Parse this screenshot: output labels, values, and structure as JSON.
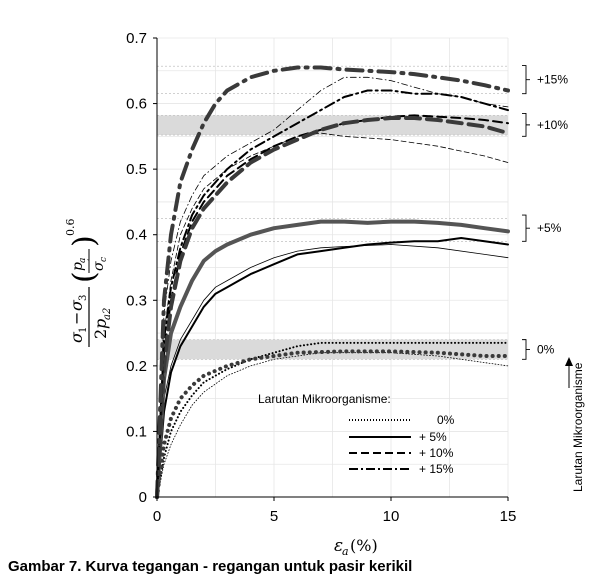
{
  "chart_data": {
    "type": "line",
    "xlabel": "εa (%)",
    "ylabel": "(σ1 − σ3)/(2pa2) (pa/σ'c)^0.6",
    "xlim": [
      0,
      15
    ],
    "ylim": [
      0,
      0.7
    ],
    "xticks": [
      "0",
      "5",
      "10",
      "15"
    ],
    "yticks": [
      "0",
      "0.1",
      "0.2",
      "0.3",
      "0.4",
      "0.5",
      "0.6",
      "0.7"
    ],
    "grid": true,
    "legend": {
      "title": "Larutan Mikroorganisme:",
      "placement": "bottom-center",
      "entries": [
        "0%",
        "+ 5%",
        "+ 10%",
        "+ 15%"
      ]
    },
    "group_labels": [
      "0%",
      "+5%",
      "+10%",
      "+15%"
    ],
    "arrow_label": "Larutan Mikroorganisme",
    "bands": [
      {
        "group": "0%",
        "y": [
          0.21,
          0.24
        ]
      },
      {
        "group": "+10%",
        "y": [
          0.552,
          0.582
        ]
      }
    ],
    "series": [
      {
        "group": "0%",
        "style": "dotted",
        "weight": "thin",
        "x": [
          0,
          0.3,
          0.6,
          1,
          1.5,
          2,
          3,
          4,
          5,
          6,
          7,
          8,
          10,
          12,
          14,
          15
        ],
        "y": [
          0,
          0.05,
          0.08,
          0.11,
          0.14,
          0.16,
          0.185,
          0.2,
          0.21,
          0.215,
          0.22,
          0.22,
          0.22,
          0.215,
          0.205,
          0.2
        ]
      },
      {
        "group": "0%",
        "style": "dotted",
        "weight": "medium",
        "x": [
          0,
          0.3,
          0.6,
          1,
          1.5,
          2,
          3,
          4,
          5,
          6,
          7,
          8,
          10,
          12,
          14,
          15
        ],
        "y": [
          0,
          0.06,
          0.1,
          0.13,
          0.155,
          0.175,
          0.195,
          0.21,
          0.22,
          0.23,
          0.235,
          0.235,
          0.235,
          0.235,
          0.235,
          0.235
        ]
      },
      {
        "group": "0%",
        "style": "dotted",
        "weight": "heavy",
        "x": [
          0,
          0.3,
          0.6,
          1,
          1.5,
          2,
          3,
          4,
          5,
          6,
          8,
          10,
          12,
          14,
          15
        ],
        "y": [
          0,
          0.08,
          0.12,
          0.15,
          0.17,
          0.185,
          0.2,
          0.21,
          0.215,
          0.22,
          0.222,
          0.222,
          0.22,
          0.215,
          0.215
        ]
      },
      {
        "group": "+5%",
        "style": "solid",
        "weight": "thin",
        "x": [
          0,
          0.3,
          0.6,
          1,
          1.5,
          2,
          2.5,
          3,
          4,
          5,
          6,
          7,
          8,
          10,
          12,
          14,
          15
        ],
        "y": [
          0,
          0.15,
          0.2,
          0.24,
          0.27,
          0.3,
          0.32,
          0.33,
          0.35,
          0.365,
          0.375,
          0.38,
          0.382,
          0.385,
          0.38,
          0.37,
          0.365
        ]
      },
      {
        "group": "+5%",
        "style": "solid",
        "weight": "medium",
        "x": [
          0,
          0.3,
          0.6,
          1,
          1.5,
          2,
          2.5,
          3,
          3.5,
          4,
          5,
          6,
          7,
          8,
          9,
          10,
          11,
          12,
          13,
          14,
          15
        ],
        "y": [
          0,
          0.13,
          0.19,
          0.23,
          0.26,
          0.29,
          0.31,
          0.32,
          0.33,
          0.34,
          0.355,
          0.37,
          0.375,
          0.38,
          0.385,
          0.388,
          0.39,
          0.39,
          0.395,
          0.39,
          0.385
        ]
      },
      {
        "group": "+5%",
        "style": "solid",
        "weight": "heavy",
        "x": [
          0,
          0.3,
          0.6,
          1,
          1.5,
          2,
          2.5,
          3,
          4,
          5,
          6,
          7,
          8,
          9,
          10,
          11,
          12,
          13,
          14,
          15
        ],
        "y": [
          0,
          0.18,
          0.25,
          0.29,
          0.33,
          0.36,
          0.375,
          0.385,
          0.4,
          0.41,
          0.415,
          0.42,
          0.42,
          0.418,
          0.42,
          0.42,
          0.418,
          0.415,
          0.41,
          0.405
        ]
      },
      {
        "group": "+10%",
        "style": "dashed",
        "weight": "thin",
        "x": [
          0,
          0.3,
          0.6,
          1,
          1.5,
          2,
          3,
          4,
          5,
          6,
          7,
          8,
          10,
          12,
          14,
          15
        ],
        "y": [
          0,
          0.25,
          0.33,
          0.4,
          0.44,
          0.47,
          0.5,
          0.52,
          0.535,
          0.55,
          0.555,
          0.55,
          0.545,
          0.535,
          0.52,
          0.51
        ]
      },
      {
        "group": "+10%",
        "style": "dashed",
        "weight": "medium",
        "x": [
          0,
          0.3,
          0.6,
          1,
          1.5,
          2,
          3,
          4,
          5,
          6,
          7,
          8,
          9,
          10,
          11,
          12,
          13,
          14,
          15
        ],
        "y": [
          0,
          0.22,
          0.3,
          0.37,
          0.42,
          0.45,
          0.49,
          0.515,
          0.535,
          0.55,
          0.56,
          0.57,
          0.575,
          0.58,
          0.582,
          0.58,
          0.578,
          0.575,
          0.57
        ]
      },
      {
        "group": "+10%",
        "style": "dashed",
        "weight": "heavy",
        "x": [
          0,
          0.3,
          0.6,
          1,
          1.5,
          2,
          3,
          4,
          5,
          6,
          7,
          8,
          9,
          10,
          11,
          12,
          13,
          14,
          15
        ],
        "y": [
          0,
          0.2,
          0.29,
          0.36,
          0.41,
          0.44,
          0.48,
          0.51,
          0.53,
          0.545,
          0.56,
          0.57,
          0.575,
          0.578,
          0.578,
          0.575,
          0.57,
          0.565,
          0.555
        ]
      },
      {
        "group": "+15%",
        "style": "dashdot",
        "weight": "thin",
        "x": [
          0,
          0.3,
          0.6,
          1,
          1.5,
          2,
          3,
          4,
          5,
          6,
          7,
          8,
          9,
          10,
          11,
          12,
          13,
          14,
          15
        ],
        "y": [
          0,
          0.28,
          0.36,
          0.42,
          0.46,
          0.49,
          0.52,
          0.54,
          0.56,
          0.59,
          0.62,
          0.64,
          0.64,
          0.635,
          0.625,
          0.615,
          0.61,
          0.6,
          0.595
        ]
      },
      {
        "group": "+15%",
        "style": "dashdot",
        "weight": "medium",
        "x": [
          0,
          0.3,
          0.6,
          1,
          1.5,
          2,
          3,
          4,
          5,
          6,
          7,
          8,
          9,
          10,
          11,
          12,
          13,
          14,
          15
        ],
        "y": [
          0,
          0.24,
          0.32,
          0.38,
          0.43,
          0.46,
          0.5,
          0.53,
          0.55,
          0.57,
          0.59,
          0.61,
          0.62,
          0.62,
          0.615,
          0.615,
          0.61,
          0.6,
          0.59
        ]
      },
      {
        "group": "+15%",
        "style": "dashdot",
        "weight": "heavy",
        "x": [
          0,
          0.3,
          0.6,
          1,
          1.5,
          2,
          2.5,
          3,
          4,
          5,
          6,
          7,
          8,
          9,
          10,
          11,
          12,
          13,
          14,
          15
        ],
        "y": [
          0,
          0.3,
          0.4,
          0.48,
          0.53,
          0.57,
          0.6,
          0.62,
          0.64,
          0.65,
          0.655,
          0.655,
          0.652,
          0.65,
          0.648,
          0.645,
          0.64,
          0.635,
          0.628,
          0.62
        ]
      }
    ]
  },
  "caption": "Gambar 7. Kurva tegangan - regangan untuk pasir kerikil"
}
